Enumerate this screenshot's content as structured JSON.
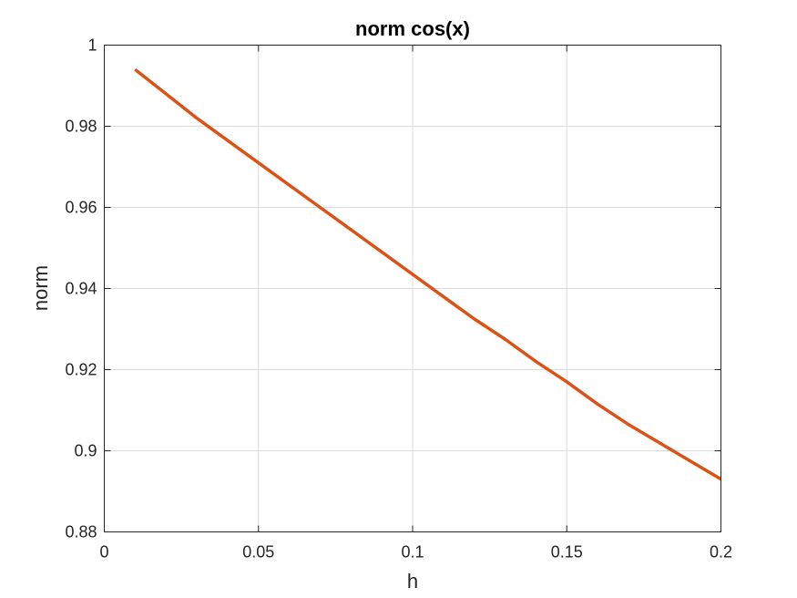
{
  "chart_data": {
    "type": "line",
    "title": "norm cos(x)",
    "xlabel": "h",
    "ylabel": "norm",
    "xlim": [
      0,
      0.2
    ],
    "ylim": [
      0.88,
      1.0
    ],
    "xticks": [
      0,
      0.05,
      0.1,
      0.15,
      0.2
    ],
    "xtick_labels": [
      "0",
      "0.05",
      "0.1",
      "0.15",
      "0.2"
    ],
    "yticks": [
      0.88,
      0.9,
      0.92,
      0.94,
      0.96,
      0.98,
      1.0
    ],
    "ytick_labels": [
      "0.88",
      "0.9",
      "0.92",
      "0.94",
      "0.96",
      "0.98",
      "1"
    ],
    "grid": true,
    "series": [
      {
        "color": "#D95319",
        "x": [
          0.01,
          0.02,
          0.03,
          0.04,
          0.05,
          0.06,
          0.07,
          0.08,
          0.09,
          0.1,
          0.11,
          0.12,
          0.13,
          0.14,
          0.15,
          0.16,
          0.17,
          0.18,
          0.19,
          0.2
        ],
        "y": [
          0.994,
          0.988,
          0.982,
          0.9765,
          0.971,
          0.9655,
          0.96,
          0.9545,
          0.949,
          0.9435,
          0.938,
          0.9325,
          0.9275,
          0.922,
          0.917,
          0.9115,
          0.9065,
          0.902,
          0.8975,
          0.893
        ]
      }
    ]
  }
}
